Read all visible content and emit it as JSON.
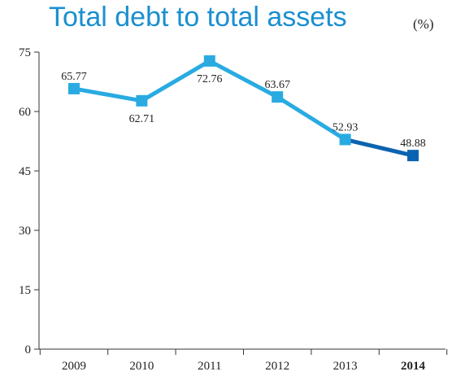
{
  "chart_data": {
    "type": "line",
    "title": "Total debt to total assets",
    "unit_label": "(%)",
    "xlabel": "",
    "ylabel": "",
    "categories": [
      "2009",
      "2010",
      "2011",
      "2012",
      "2013",
      "2014"
    ],
    "series": [
      {
        "values": [
          65.77,
          62.71,
          72.76,
          63.67,
          52.93,
          48.88
        ]
      }
    ],
    "data_labels": [
      "65.77",
      "62.71",
      "72.76",
      "63.67",
      "52.93",
      "48.88"
    ],
    "yticks": [
      0,
      15,
      30,
      45,
      60,
      75
    ],
    "ylim": [
      0,
      75
    ],
    "grid": false,
    "highlight_category": "2014",
    "colors": {
      "line": "#29abe2",
      "highlight": "#0a63b0",
      "title": "#1a8fd0",
      "axis": "#333333",
      "text": "#222222"
    }
  }
}
